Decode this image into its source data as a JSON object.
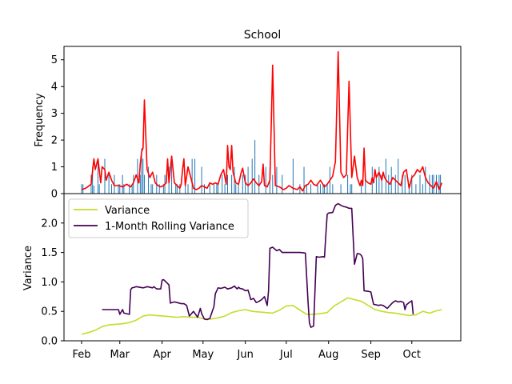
{
  "chart_data": [
    {
      "panel": "top",
      "type": "bar+line",
      "title": "School",
      "xlabel": "",
      "ylabel": "Frequency",
      "ylim": [
        0,
        5.5
      ],
      "yticks": [
        0,
        1,
        2,
        3,
        4,
        5
      ],
      "x_domain_days": [
        0,
        265
      ],
      "colors": {
        "bars": "#1f77b4",
        "line": "#ff0000"
      },
      "bars": {
        "name": "",
        "x": [
          0,
          1,
          7,
          8,
          9,
          12,
          13,
          17,
          20,
          22,
          24,
          27,
          28,
          30,
          31,
          35,
          37,
          38,
          41,
          43,
          44,
          45,
          46,
          49,
          51,
          52,
          55,
          57,
          60,
          61,
          64,
          66,
          69,
          70,
          72,
          76,
          78,
          81,
          83,
          88,
          90,
          94,
          97,
          99,
          100,
          103,
          105,
          107,
          110,
          112,
          113,
          115,
          118,
          120,
          122,
          125,
          127,
          130,
          135,
          138,
          140,
          143,
          147,
          155,
          160,
          163,
          165,
          168,
          173,
          175,
          177,
          178,
          180,
          182,
          184,
          190,
          195,
          197,
          198,
          205,
          208,
          213,
          216,
          218,
          220,
          223,
          225,
          227,
          230,
          232,
          235,
          237,
          240,
          242,
          245,
          248,
          250,
          252,
          255,
          257,
          258,
          260,
          262,
          263
        ],
        "values": [
          0.35,
          0.35,
          0.7,
          1,
          0.3,
          1.3,
          0.35,
          1.3,
          0.7,
          0.35,
          0.7,
          0.35,
          0.35,
          0.7,
          0.35,
          0.35,
          0.35,
          0.7,
          1.3,
          0.7,
          1.7,
          1.3,
          0.7,
          1,
          0.35,
          0.35,
          0.7,
          0.35,
          0.35,
          0.7,
          1,
          1.3,
          0.35,
          0.35,
          0.35,
          0.35,
          0.35,
          1.3,
          1.3,
          1,
          0.35,
          0.35,
          0.35,
          0.35,
          0.35,
          0.7,
          0.35,
          0.7,
          0.7,
          1,
          0.35,
          0.35,
          0.7,
          0.7,
          1,
          1.3,
          2,
          0.7,
          1,
          1,
          0.7,
          1,
          0.7,
          1.3,
          0.35,
          1,
          0.35,
          0.35,
          0.35,
          0.35,
          0.35,
          0.35,
          0.35,
          1,
          0.35,
          0.35,
          0.7,
          0.35,
          0.35,
          0.35,
          0.7,
          1,
          0.7,
          1,
          0.7,
          1.3,
          0.7,
          1,
          0.7,
          1.3,
          0.7,
          0.7,
          0.35,
          0.7,
          0.35,
          0.7,
          0.35,
          1,
          0.7,
          0.7,
          0.7,
          0.7,
          0.7,
          0.7
        ]
      },
      "line": {
        "name": "",
        "x": [
          0,
          3,
          7,
          9,
          10,
          12,
          14,
          15,
          17,
          18,
          20,
          22,
          24,
          27,
          30,
          33,
          36,
          38,
          40,
          42,
          43,
          44,
          45,
          46,
          48,
          50,
          52,
          54,
          56,
          58,
          60,
          62,
          63,
          64,
          65,
          66,
          68,
          70,
          72,
          73,
          74,
          75,
          76,
          78,
          80,
          82,
          84,
          86,
          88,
          90,
          92,
          94,
          96,
          98,
          100,
          102,
          104,
          106,
          107,
          108,
          109,
          110,
          111,
          113,
          115,
          117,
          118,
          120,
          122,
          124,
          126,
          128,
          130,
          132,
          133,
          134,
          136,
          138,
          140,
          142,
          145,
          148,
          150,
          152,
          155,
          158,
          160,
          162,
          164,
          166,
          168,
          170,
          172,
          175,
          178,
          180,
          182,
          184,
          186,
          188,
          190,
          192,
          194,
          196,
          198,
          200,
          202,
          204,
          205,
          206,
          207,
          208,
          210,
          212,
          213,
          214,
          215,
          216,
          218,
          220,
          221,
          222,
          224,
          226,
          228,
          230,
          232,
          234,
          236,
          238,
          240,
          242,
          244,
          246,
          248,
          250,
          252,
          254,
          256,
          258,
          260,
          262,
          264
        ],
        "values": [
          0.15,
          0.2,
          0.35,
          1.3,
          0.9,
          1.3,
          0.4,
          1,
          0.9,
          0.5,
          0.8,
          0.5,
          0.3,
          0.3,
          0.25,
          0.35,
          0.25,
          0.4,
          0.7,
          0.4,
          1.1,
          1.55,
          1.7,
          3.5,
          0.9,
          0.6,
          0.8,
          0.4,
          0.3,
          0.25,
          0.3,
          0.4,
          1.3,
          0.4,
          0.9,
          1.4,
          0.4,
          0.3,
          0.2,
          0.35,
          0.9,
          1.3,
          0.3,
          1,
          0.6,
          0.2,
          0.15,
          0.2,
          0.3,
          0.25,
          0.2,
          0.4,
          0.35,
          0.4,
          0.35,
          0.7,
          0.9,
          0.35,
          1.8,
          1,
          0.9,
          1.8,
          0.8,
          0.4,
          0.35,
          0.8,
          0.95,
          0.4,
          0.3,
          0.4,
          0.55,
          0.4,
          0.3,
          0.45,
          1.1,
          0.3,
          0.25,
          0.5,
          4.8,
          0.3,
          0.25,
          0.15,
          0.2,
          0.3,
          0.2,
          0.15,
          0.25,
          0.1,
          0.3,
          0.35,
          0.5,
          0.35,
          0.3,
          0.5,
          0.25,
          0.35,
          0.5,
          0.65,
          1.2,
          5.3,
          0.8,
          0.6,
          0.7,
          4.2,
          0.6,
          1.4,
          0.6,
          0.3,
          0.5,
          0.3,
          1.7,
          0.5,
          0.4,
          0.35,
          0.6,
          0.4,
          0.9,
          0.6,
          0.8,
          0.5,
          0.8,
          0.6,
          0.45,
          0.35,
          0.6,
          0.5,
          0.4,
          0.3,
          0.8,
          0.9,
          0.2,
          0.6,
          0.7,
          0.9,
          0.8,
          1,
          0.6,
          0.4,
          0.3,
          0.2,
          0.45,
          0.15,
          0.4
        ]
      }
    },
    {
      "panel": "bottom",
      "type": "line",
      "title": "",
      "xlabel": "",
      "ylabel": "Variance",
      "ylim": [
        0,
        2.5
      ],
      "yticks": [
        "0.0",
        "0.5",
        "1.0",
        "1.5",
        "2.0"
      ],
      "xticks": [
        {
          "day": 0,
          "label": "Feb"
        },
        {
          "day": 28,
          "label": "Mar"
        },
        {
          "day": 59,
          "label": "Apr"
        },
        {
          "day": 89,
          "label": "May"
        },
        {
          "day": 120,
          "label": "Jun"
        },
        {
          "day": 150,
          "label": "Jul"
        },
        {
          "day": 181,
          "label": "Aug"
        },
        {
          "day": 212,
          "label": "Sep"
        },
        {
          "day": 242,
          "label": "Oct"
        }
      ],
      "legend_position": "upper-left",
      "series": [
        {
          "name": "Variance",
          "color": "#c5dc2a",
          "x": [
            0,
            5,
            10,
            15,
            20,
            25,
            30,
            35,
            40,
            45,
            50,
            55,
            60,
            65,
            70,
            75,
            80,
            85,
            90,
            95,
            100,
            105,
            110,
            115,
            120,
            125,
            130,
            135,
            140,
            145,
            150,
            155,
            160,
            165,
            170,
            175,
            180,
            185,
            190,
            195,
            200,
            205,
            210,
            215,
            220,
            225,
            230,
            235,
            240,
            245,
            250,
            255,
            260,
            264
          ],
          "values": [
            0.11,
            0.14,
            0.18,
            0.24,
            0.27,
            0.28,
            0.29,
            0.31,
            0.35,
            0.42,
            0.44,
            0.43,
            0.42,
            0.41,
            0.4,
            0.41,
            0.4,
            0.4,
            0.37,
            0.37,
            0.39,
            0.42,
            0.48,
            0.51,
            0.53,
            0.5,
            0.49,
            0.48,
            0.47,
            0.52,
            0.59,
            0.6,
            0.52,
            0.45,
            0.45,
            0.46,
            0.48,
            0.59,
            0.66,
            0.73,
            0.7,
            0.67,
            0.6,
            0.53,
            0.5,
            0.48,
            0.47,
            0.45,
            0.43,
            0.44,
            0.5,
            0.47,
            0.51,
            0.53
          ]
        },
        {
          "name": "1-Month Rolling Variance",
          "color": "#440154",
          "x": [
            15,
            27,
            28,
            30,
            31,
            35,
            36,
            37,
            39,
            40,
            45,
            47,
            48,
            52,
            53,
            55,
            58,
            59,
            60,
            61,
            64,
            65,
            68,
            70,
            73,
            75,
            77,
            79,
            82,
            85,
            87,
            88,
            90,
            92,
            94,
            97,
            98,
            100,
            102,
            105,
            107,
            110,
            112,
            114,
            115,
            116,
            118,
            120,
            122,
            124,
            126,
            128,
            130,
            132,
            134,
            136,
            137,
            138,
            140,
            143,
            145,
            147,
            150,
            152,
            156,
            160,
            164,
            166,
            167,
            168,
            170,
            172,
            174,
            177,
            178,
            179,
            180,
            181,
            184,
            186,
            188,
            190,
            192,
            194,
            196,
            198,
            200,
            202,
            203,
            204,
            205,
            206,
            207,
            210,
            212,
            213,
            214,
            218,
            219,
            221,
            224,
            226,
            228,
            230,
            232,
            234,
            236,
            237,
            238,
            240,
            242,
            243
          ],
          "values": [
            0.53,
            0.53,
            0.45,
            0.53,
            0.47,
            0.45,
            0.87,
            0.9,
            0.91,
            0.92,
            0.9,
            0.91,
            0.92,
            0.9,
            0.92,
            0.88,
            0.88,
            1.03,
            1.04,
            1.02,
            0.95,
            0.64,
            0.66,
            0.65,
            0.63,
            0.63,
            0.6,
            0.42,
            0.5,
            0.4,
            0.55,
            0.46,
            0.37,
            0.36,
            0.38,
            0.58,
            0.8,
            0.9,
            0.89,
            0.91,
            0.88,
            0.9,
            0.93,
            0.88,
            0.91,
            0.89,
            0.88,
            0.85,
            0.86,
            0.7,
            0.72,
            0.65,
            0.67,
            0.7,
            0.75,
            0.6,
            0.85,
            1.57,
            1.59,
            1.53,
            1.55,
            1.5,
            1.5,
            1.5,
            1.5,
            1.5,
            1.49,
            0.65,
            0.3,
            0.23,
            0.25,
            1.43,
            1.42,
            1.43,
            1.42,
            1.8,
            2.15,
            2.17,
            2.18,
            2.3,
            2.33,
            2.3,
            2.28,
            2.27,
            2.25,
            2.25,
            1.3,
            1.48,
            1.48,
            1.47,
            1.45,
            1.4,
            0.85,
            0.84,
            0.83,
            0.72,
            0.62,
            0.6,
            0.61,
            0.6,
            0.55,
            0.6,
            0.65,
            0.68,
            0.66,
            0.67,
            0.65,
            0.53,
            0.61,
            0.65,
            0.68,
            0.45
          ]
        }
      ]
    }
  ]
}
